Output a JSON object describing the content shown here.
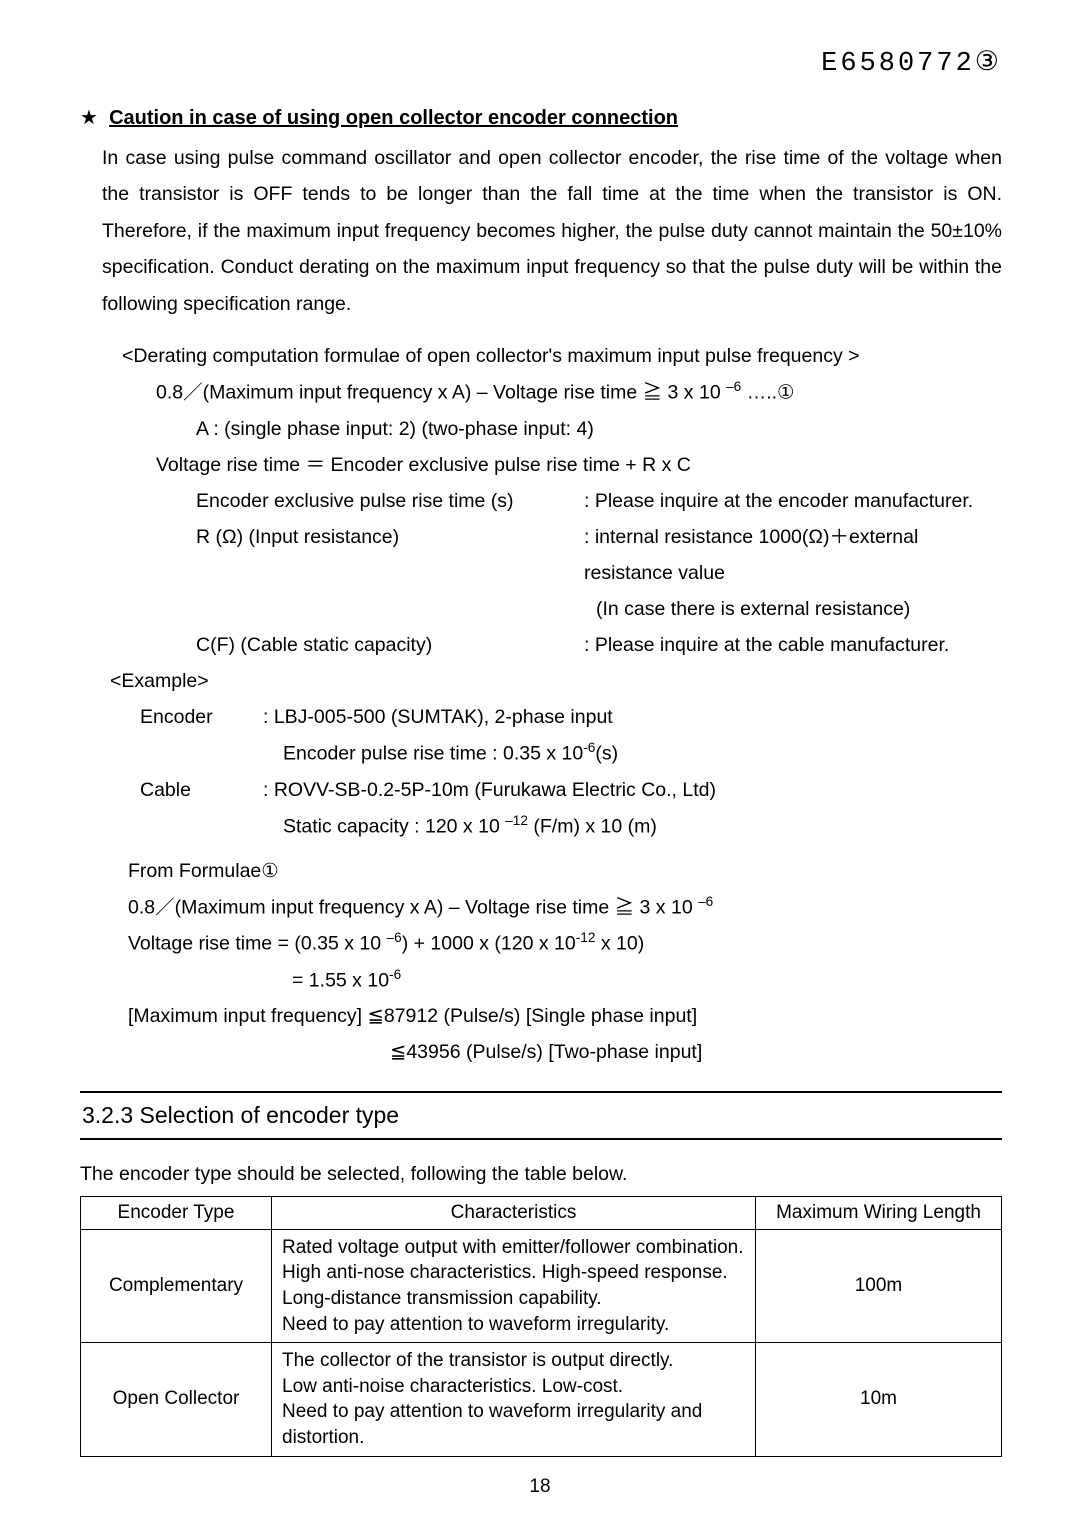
{
  "doc_number": "E6580772③",
  "heading_star": "★",
  "heading_text": "Caution in case of using open collector encoder connection",
  "intro": "In case using pulse command oscillator and open collector encoder, the rise time of the voltage when the transistor is OFF tends to be longer than the fall time at the time when the transistor is ON. Therefore, if the maximum input frequency becomes higher, the pulse duty cannot maintain the 50±10% specification. Conduct derating on the maximum input frequency so that the pulse duty will be within the following specification range.",
  "derating_title": "<Derating computation formulae of open collector's maximum input pulse frequency >",
  "formula1_pre": "0.8／(Maximum input frequency x A) – Voltage rise time  ≧  3 x 10 ",
  "formula1_exp": "–6",
  "formula1_post": " …..①",
  "a_note": "A : (single phase input: 2) (two-phase input: 4)",
  "vrt_line": "Voltage rise time  ＝  Encoder exclusive pulse rise time + R x C",
  "enc_label": "Encoder exclusive pulse rise time (s)",
  "enc_val": ": Please inquire at the encoder manufacturer.",
  "r_label": "R (Ω) (Input resistance)",
  "r_val": ": internal resistance 1000(Ω)＋external resistance value",
  "r_note": "(In case there is external resistance)",
  "c_label": "C(F) (Cable static capacity)",
  "c_val": ": Please inquire at the cable manufacturer.",
  "example_title": "<Example>",
  "ex_enc_label": "Encoder",
  "ex_enc_line1": ": LBJ-005-500 (SUMTAK), 2-phase input",
  "ex_enc_line2_pre": "Encoder pulse rise time : 0.35 x 10",
  "ex_enc_line2_exp": "-6",
  "ex_enc_line2_post": "(s)",
  "ex_cable_label": "Cable",
  "ex_cable_line1": ": ROVV-SB-0.2-5P-10m (Furukawa Electric Co., Ltd)",
  "ex_cable_line2_pre": "Static capacity : 120 x 10 ",
  "ex_cable_line2_exp": "–12",
  "ex_cable_line2_post": " (F/m) x 10 (m)",
  "from_formula": "From Formulae①",
  "ff_line1_pre": "0.8／(Maximum input frequency x A) – Voltage rise time  ≧  3 x 10 ",
  "ff_line1_exp": "–6",
  "ff_line2_pre": "Voltage rise time = (0.35 x 10 ",
  "ff_line2_exp1": "–6",
  "ff_line2_mid": ") + 1000 x (120 x 10",
  "ff_line2_exp2": "-12",
  "ff_line2_post": " x 10)",
  "ff_line3_pre": "= 1.55 x 10",
  "ff_line3_exp": "-6",
  "max_line1": "[Maximum input frequency]  ≦87912 (Pulse/s) [Single phase input]",
  "max_line2": "≦43956 (Pulse/s) [Two-phase input]",
  "section_num": "3.2.3 Selection of encoder type",
  "table_intro": "The encoder type should be selected, following the table below.",
  "table": {
    "headers": [
      "Encoder Type",
      "Characteristics",
      "Maximum Wiring Length"
    ],
    "rows": [
      {
        "type": "Complementary",
        "char": "Rated voltage output with emitter/follower combination.\nHigh anti-nose characteristics. High-speed response.\nLong-distance transmission capability.\nNeed to pay attention to waveform irregularity.",
        "len": "100m"
      },
      {
        "type": "Open Collector",
        "char": "The collector of the transistor is output directly.\nLow anti-noise characteristics. Low-cost.\nNeed to pay attention to waveform irregularity and distortion.",
        "len": "10m"
      }
    ]
  },
  "page_number": "18",
  "colors": {
    "text": "#000000",
    "background": "#ffffff",
    "rule": "#000000"
  }
}
